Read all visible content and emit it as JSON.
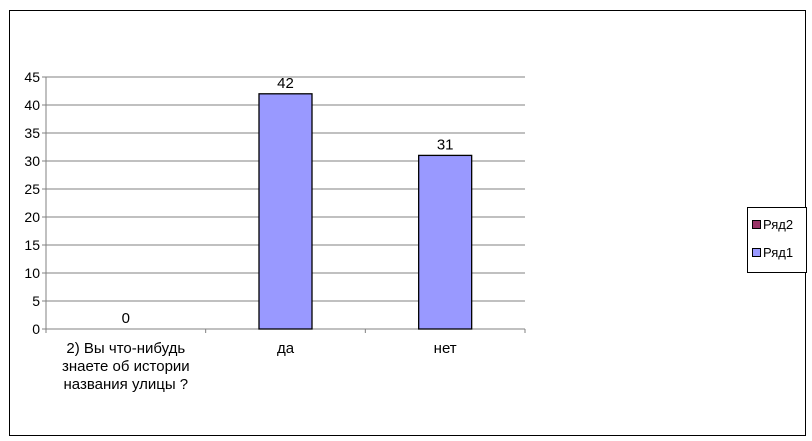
{
  "chart_data": {
    "type": "bar",
    "categories": [
      "2) Вы что-нибудь знаете об истории названия улицы ?",
      "да",
      "нет"
    ],
    "category_lines": [
      [
        "2) Вы что-нибудь",
        "знаете об истории",
        "названия улицы ?"
      ],
      [
        "да"
      ],
      [
        "нет"
      ]
    ],
    "series": [
      {
        "name": "Ряд1",
        "values": [
          0,
          42,
          31
        ],
        "color": "#9999ff"
      },
      {
        "name": "Ряд2",
        "values": [
          0,
          0,
          0
        ],
        "color": "#993366"
      }
    ],
    "data_labels": [
      "0",
      "42",
      "31"
    ],
    "ylim": [
      0,
      45
    ],
    "yticks": [
      0,
      5,
      10,
      15,
      20,
      25,
      30,
      35,
      40,
      45
    ],
    "grid": true,
    "legend_position": "right",
    "title": "",
    "xlabel": "",
    "ylabel": ""
  },
  "legend": {
    "items": [
      {
        "label": "Ряд2",
        "color": "#993366"
      },
      {
        "label": "Ряд1",
        "color": "#9999ff"
      }
    ]
  }
}
